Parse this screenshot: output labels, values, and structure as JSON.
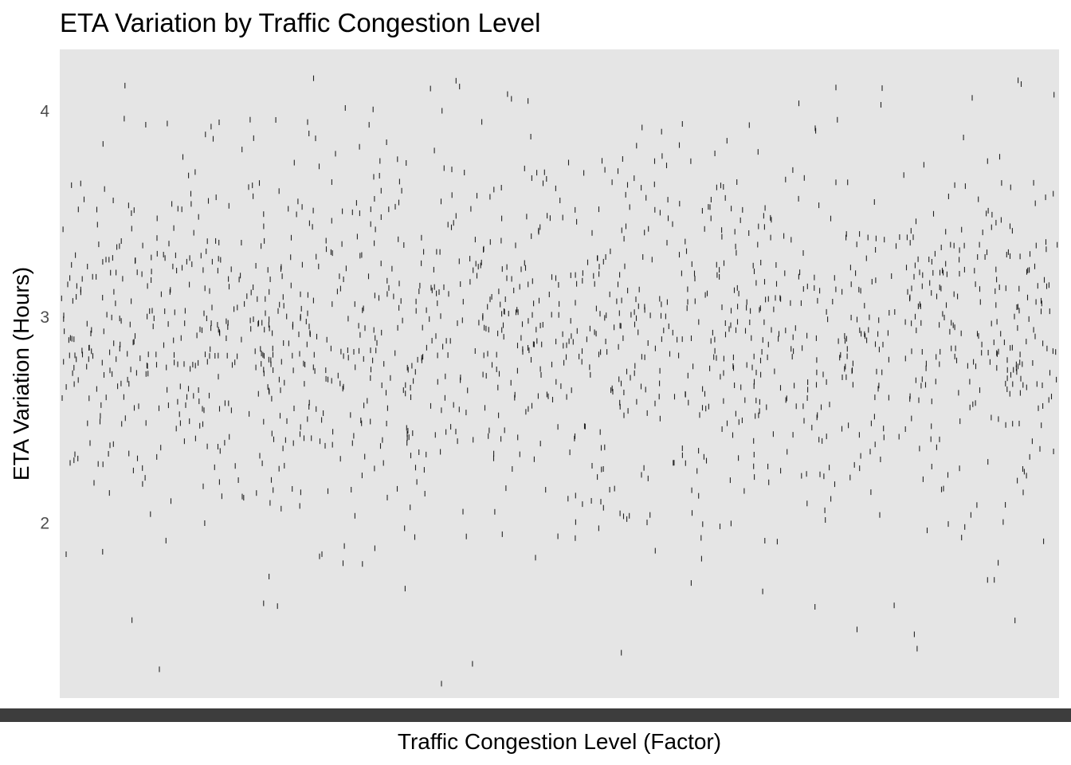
{
  "chart_data": {
    "type": "scatter",
    "title": "ETA Variation by Traffic Congestion Level",
    "xlabel": "Traffic Congestion Level (Factor)",
    "ylabel": "ETA Variation (Hours)",
    "ylim": [
      1.15,
      4.3
    ],
    "yticks": [
      2,
      3,
      4
    ],
    "ytick_labels": [
      "2",
      "3",
      "4"
    ],
    "grid": false,
    "panel_color": "#e5e5e5",
    "point_color": "#000000",
    "marker": "vertical-line",
    "n_points": 1600,
    "y_distribution": {
      "mean": 2.9,
      "sd": 0.47,
      "min": 1.22,
      "max": 4.17
    },
    "notable_points": [
      {
        "x": 0.254,
        "y": 4.16
      },
      {
        "x": 0.371,
        "y": 4.11
      },
      {
        "x": 0.452,
        "y": 4.06
      },
      {
        "x": 0.959,
        "y": 4.15
      },
      {
        "x": 0.995,
        "y": 4.08
      },
      {
        "x": 0.382,
        "y": 1.22
      },
      {
        "x": 0.562,
        "y": 1.37
      },
      {
        "x": 0.858,
        "y": 1.39
      },
      {
        "x": 0.204,
        "y": 1.61
      },
      {
        "x": 0.835,
        "y": 1.6
      }
    ]
  }
}
